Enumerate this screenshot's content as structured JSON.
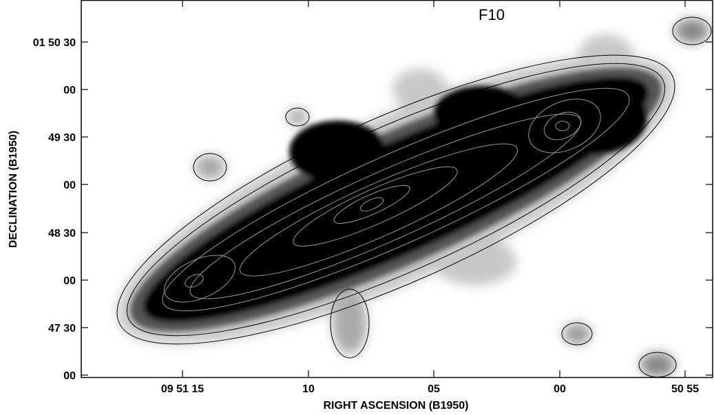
{
  "figure": {
    "label": "F10",
    "x_axis": {
      "title": "RIGHT ASCENSION (B1950)",
      "ticks": [
        "09 51 15",
        "10",
        "05",
        "00",
        "50 55"
      ]
    },
    "y_axis": {
      "title": "DECLINATION (B1950)",
      "ticks": [
        "01 50 30",
        "00",
        "49 30",
        "00",
        "48 30",
        "00",
        "47 30",
        "00"
      ]
    }
  }
}
